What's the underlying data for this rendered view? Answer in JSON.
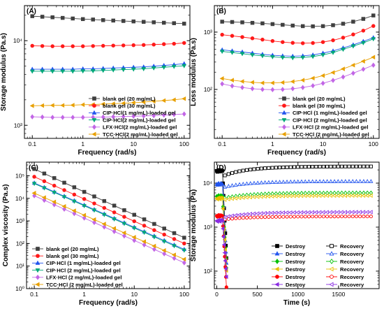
{
  "chart_data": [
    {
      "panel": "(A)",
      "type": "line",
      "xlabel": "Frequency (rad/s)",
      "ylabel": "Storage modulus (Pa.s)",
      "xscale": "log",
      "yscale": "log",
      "xlim": [
        0.07,
        130
      ],
      "ylim": [
        700,
        26000
      ],
      "xticks": [
        0.1,
        1,
        10,
        100
      ],
      "xtick_labels": [
        "0.1",
        "1",
        "10",
        "100"
      ],
      "yticks": [
        1000,
        10000
      ],
      "ytick_labels": [
        "10³",
        "10⁴"
      ],
      "legend_position": "bottom-right",
      "series": [
        {
          "name": "blank gel (20 mg/mL)",
          "color": "#404040",
          "marker": "square",
          "x": [
            0.1,
            0.158,
            0.251,
            0.398,
            0.631,
            1,
            1.585,
            2.512,
            3.981,
            6.31,
            10,
            15.85,
            25.12,
            39.81,
            63.1,
            100
          ],
          "y": [
            19500,
            19200,
            18900,
            18600,
            18300,
            18000,
            17800,
            17500,
            17300,
            17100,
            16900,
            16700,
            16500,
            16300,
            16100,
            15900
          ]
        },
        {
          "name": "blank gel (30 mg/mL)",
          "color": "#ff1a1a",
          "marker": "circle",
          "x": [
            0.1,
            0.158,
            0.251,
            0.398,
            0.631,
            1,
            1.585,
            2.512,
            3.981,
            6.31,
            10,
            15.85,
            25.12,
            39.81,
            63.1,
            100
          ],
          "y": [
            8700,
            8650,
            8600,
            8600,
            8600,
            8600,
            8650,
            8700,
            8750,
            8800,
            8850,
            8900,
            9000,
            9100,
            9200,
            9400
          ]
        },
        {
          "name": "CIP·HCl(1 mg/mL)-loaded gel",
          "color": "#2255ee",
          "marker": "triangle-up",
          "x": [
            0.1,
            0.158,
            0.251,
            0.398,
            0.631,
            1,
            1.585,
            2.512,
            3.981,
            6.31,
            10,
            15.85,
            25.12,
            39.81,
            63.1,
            100
          ],
          "y": [
            4600,
            4600,
            4600,
            4600,
            4600,
            4650,
            4650,
            4700,
            4750,
            4800,
            4850,
            4900,
            5000,
            5100,
            5200,
            5350
          ]
        },
        {
          "name": "CIP·HCl(2 mg/mL)-loaded gel",
          "color": "#00a878",
          "marker": "triangle-down",
          "x": [
            0.1,
            0.158,
            0.251,
            0.398,
            0.631,
            1,
            1.585,
            2.512,
            3.981,
            6.31,
            10,
            15.85,
            25.12,
            39.81,
            63.1,
            100
          ],
          "y": [
            4350,
            4350,
            4350,
            4350,
            4350,
            4380,
            4400,
            4450,
            4500,
            4550,
            4600,
            4650,
            4750,
            4850,
            4950,
            5050
          ]
        },
        {
          "name": "LFX·HCl(2 mg/mL)-loaded gel",
          "color": "#c266e6",
          "marker": "diamond",
          "x": [
            0.1,
            0.158,
            0.251,
            0.398,
            0.631,
            1,
            1.585,
            2.512,
            3.981,
            6.31,
            10,
            15.85,
            25.12,
            39.81,
            63.1,
            100
          ],
          "y": [
            1260,
            1250,
            1240,
            1240,
            1240,
            1240,
            1245,
            1250,
            1260,
            1270,
            1280,
            1290,
            1300,
            1320,
            1340,
            1360
          ]
        },
        {
          "name": "TCC·HCl(2 mg/mL)-loaded gel",
          "color": "#e8a000",
          "marker": "triangle-left",
          "x": [
            0.1,
            0.158,
            0.251,
            0.398,
            0.631,
            1,
            1.585,
            2.512,
            3.981,
            6.31,
            10,
            15.85,
            25.12,
            39.81,
            63.1,
            100
          ],
          "y": [
            1700,
            1710,
            1720,
            1720,
            1730,
            1750,
            1760,
            1780,
            1800,
            1820,
            1850,
            1880,
            1920,
            1960,
            2000,
            2060
          ]
        }
      ]
    },
    {
      "panel": "(B)",
      "type": "line",
      "xlabel": "Frequency (rad/s)",
      "ylabel": "Loss modulus (Pa.s)",
      "xscale": "log",
      "yscale": "log",
      "xlim": [
        0.07,
        130
      ],
      "ylim": [
        14,
        2900
      ],
      "xticks": [
        0.1,
        1,
        10,
        100
      ],
      "xtick_labels": [
        "0.1",
        "1",
        "10",
        "100"
      ],
      "yticks": [
        100,
        1000
      ],
      "ytick_labels": [
        "10²",
        "10³"
      ],
      "legend_position": "bottom-right",
      "series": [
        {
          "name": "blank gel (20 mg/mL)",
          "color": "#404040",
          "marker": "square",
          "x": [
            0.1,
            0.158,
            0.251,
            0.398,
            0.631,
            1,
            1.585,
            2.512,
            3.981,
            6.31,
            10,
            15.85,
            25.12,
            39.81,
            63.1,
            100
          ],
          "y": [
            1520,
            1500,
            1480,
            1450,
            1420,
            1380,
            1340,
            1300,
            1270,
            1260,
            1270,
            1320,
            1400,
            1520,
            1700,
            1950
          ]
        },
        {
          "name": "blank gel (30 mg/mL)",
          "color": "#ff1a1a",
          "marker": "circle",
          "x": [
            0.1,
            0.158,
            0.251,
            0.398,
            0.631,
            1,
            1.585,
            2.512,
            3.981,
            6.31,
            10,
            15.85,
            25.12,
            39.81,
            63.1,
            100
          ],
          "y": [
            900,
            860,
            820,
            780,
            740,
            700,
            670,
            650,
            640,
            645,
            670,
            720,
            800,
            910,
            1060,
            1280
          ]
        },
        {
          "name": "CIP·HCl (1 mg/mL)-loaded gel",
          "color": "#2255ee",
          "marker": "triangle-up",
          "x": [
            0.1,
            0.158,
            0.251,
            0.398,
            0.631,
            1,
            1.585,
            2.512,
            3.981,
            6.31,
            10,
            15.85,
            25.12,
            39.81,
            63.1,
            100
          ],
          "y": [
            490,
            470,
            450,
            430,
            410,
            395,
            385,
            380,
            385,
            400,
            430,
            470,
            530,
            600,
            690,
            800
          ]
        },
        {
          "name": "CIP·HCl (2 mg/mL)-loaded gel",
          "color": "#00a878",
          "marker": "triangle-down",
          "x": [
            0.1,
            0.158,
            0.251,
            0.398,
            0.631,
            1,
            1.585,
            2.512,
            3.981,
            6.31,
            10,
            15.85,
            25.12,
            39.81,
            63.1,
            100
          ],
          "y": [
            460,
            440,
            420,
            400,
            385,
            370,
            360,
            355,
            360,
            375,
            400,
            440,
            500,
            570,
            650,
            760
          ]
        },
        {
          "name": "LFX·HCl (2 mg/mL)-loaded gel",
          "color": "#c266e6",
          "marker": "diamond",
          "x": [
            0.1,
            0.158,
            0.251,
            0.398,
            0.631,
            1,
            1.585,
            2.512,
            3.981,
            6.31,
            10,
            15.85,
            25.12,
            39.81,
            63.1,
            100
          ],
          "y": [
            125,
            115,
            108,
            103,
            100,
            99,
            100,
            103,
            108,
            116,
            128,
            144,
            165,
            192,
            225,
            265
          ]
        },
        {
          "name": "TCC·HCl (2 mg/mL)-loaded gel",
          "color": "#e8a000",
          "marker": "triangle-left",
          "x": [
            0.1,
            0.158,
            0.251,
            0.398,
            0.631,
            1,
            1.585,
            2.512,
            3.981,
            6.31,
            10,
            15.85,
            25.12,
            39.81,
            63.1,
            100
          ],
          "y": [
            155,
            145,
            138,
            133,
            130,
            130,
            132,
            137,
            145,
            157,
            174,
            197,
            228,
            265,
            310,
            365
          ]
        }
      ]
    },
    {
      "panel": "(C)",
      "type": "line",
      "xlabel": "Frequency (rad/s)",
      "ylabel": "Complex viscosity (Pa.s)",
      "xscale": "log",
      "yscale": "log",
      "xlim": [
        0.07,
        130
      ],
      "ylim": [
        1,
        400000
      ],
      "xticks": [
        0.1,
        1,
        10,
        100
      ],
      "xtick_labels": [
        "0.1",
        "1",
        "10",
        "100"
      ],
      "yticks": [
        1,
        10,
        100,
        1000,
        10000,
        100000
      ],
      "ytick_labels": [
        "10⁰",
        "10¹",
        "10²",
        "10³",
        "10⁴",
        "10⁵"
      ],
      "legend_position": "bottom-left",
      "series": [
        {
          "name": "blank gel (20 mg/mL)",
          "color": "#404040",
          "marker": "square",
          "x": [
            0.1,
            100
          ],
          "y": [
            200000,
            180
          ]
        },
        {
          "name": "blank gel (30 mg/mL)",
          "color": "#ff1a1a",
          "marker": "circle",
          "x": [
            0.1,
            100
          ],
          "y": [
            90000,
            100
          ]
        },
        {
          "name": "CIP·HCl (1 mg/mL)-loaded gel",
          "color": "#2255ee",
          "marker": "triangle-up",
          "x": [
            0.1,
            100
          ],
          "y": [
            48000,
            55
          ]
        },
        {
          "name": "CIP·HCl (2 mg/mL)-loaded gel",
          "color": "#00a878",
          "marker": "triangle-down",
          "x": [
            0.1,
            100
          ],
          "y": [
            45000,
            50
          ]
        },
        {
          "name": "LFX·HCl (2 mg/mL)-loaded gel",
          "color": "#c266e6",
          "marker": "diamond",
          "x": [
            0.1,
            100
          ],
          "y": [
            13000,
            14
          ]
        },
        {
          "name": "TCC·HCl (2 mg/mL)-loaded gel",
          "color": "#e8a000",
          "marker": "triangle-left",
          "x": [
            0.1,
            100
          ],
          "y": [
            17000,
            20
          ]
        }
      ]
    },
    {
      "panel": "(D)",
      "type": "scatter",
      "xlabel": "Time (s)",
      "ylabel": "Storage modulus (Pa)",
      "xscale": "linear",
      "yscale": "log",
      "xlim": [
        -30,
        2000
      ],
      "ylim": [
        40,
        30000
      ],
      "xticks": [
        0,
        500,
        1000,
        1500
      ],
      "xtick_labels": [
        "0",
        "500",
        "1000",
        "1500"
      ],
      "yticks": [
        100,
        1000,
        10000
      ],
      "ytick_labels": [
        "10²",
        "10³",
        "10⁴"
      ],
      "legend_position": "bottom-right",
      "legend_destroy": [
        "Destroy",
        "Destroy",
        "Destroy",
        "Destroy",
        "Destroy",
        "Destroy"
      ],
      "legend_recovery": [
        "Recovery",
        "Recovery",
        "Recovery",
        "Recovery",
        "Recovery",
        "Recovery"
      ],
      "series": [
        {
          "color": "#000000",
          "marker": "square",
          "destroy_plateau": 19000,
          "destroy_min": 180,
          "recovery_start": 15000,
          "recovery_end": 24000
        },
        {
          "color": "#2255ee",
          "marker": "triangle-up",
          "destroy_plateau": 9500,
          "destroy_min": 140,
          "recovery_start": 8200,
          "recovery_end": 11000
        },
        {
          "color": "#00c000",
          "marker": "diamond",
          "destroy_plateau": 5000,
          "destroy_min": 110,
          "recovery_start": 4600,
          "recovery_end": 6000
        },
        {
          "color": "#e8c000",
          "marker": "triangle-left",
          "destroy_plateau": 4500,
          "destroy_min": 95,
          "recovery_start": 4200,
          "recovery_end": 5200
        },
        {
          "color": "#ff0000",
          "marker": "circle",
          "destroy_plateau": 1800,
          "destroy_min": 40,
          "recovery_start": 1500,
          "recovery_end": 1750
        },
        {
          "color": "#8a2be2",
          "marker": "triangle-left",
          "destroy_plateau": 1400,
          "destroy_min": 70,
          "recovery_start": 1700,
          "recovery_end": 2200
        }
      ]
    }
  ]
}
